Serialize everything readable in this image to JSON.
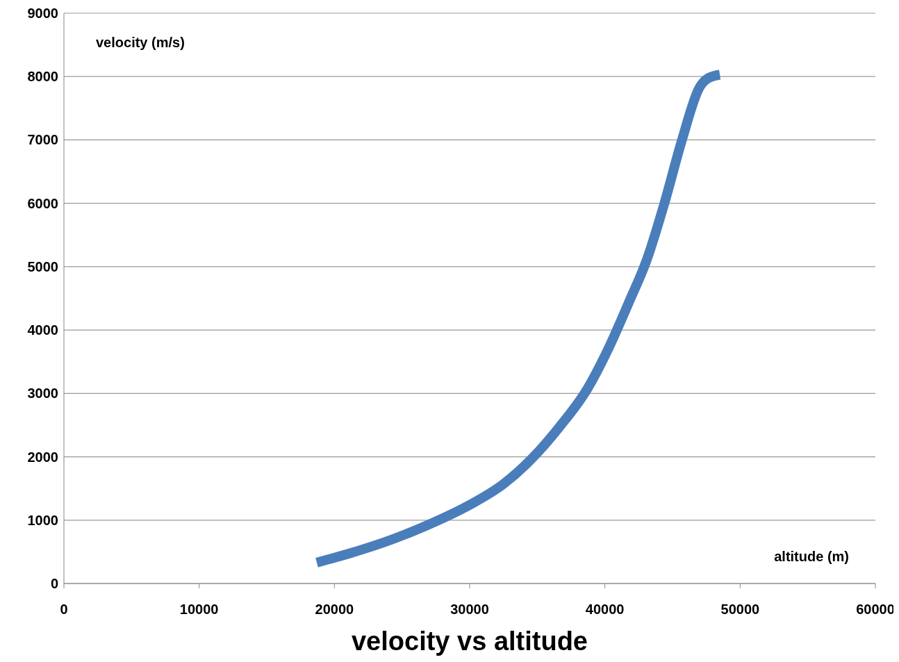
{
  "chart_data": {
    "type": "line",
    "title": "velocity vs altitude",
    "xlabel": "altitude (m)",
    "ylabel": "velocity (m/s)",
    "xlim": [
      0,
      60000
    ],
    "xticks": [
      0,
      10000,
      20000,
      30000,
      40000,
      50000,
      60000
    ],
    "ylim": [
      0,
      9000
    ],
    "yticks": [
      0,
      1000,
      2000,
      3000,
      4000,
      5000,
      6000,
      7000,
      8000,
      9000
    ],
    "grid": "y",
    "marker": "none",
    "line_style": "solid",
    "series": [
      {
        "color": "#4a7ebb",
        "x": [
          18700,
          20070,
          24200,
          27300,
          30000,
          32500,
          34550,
          36600,
          38700,
          40200,
          41800,
          43100,
          44400,
          45700,
          47000,
          47600,
          48500
        ],
        "values": [
          330,
          410,
          690,
          960,
          1240,
          1570,
          1960,
          2460,
          3070,
          3680,
          4450,
          5110,
          6000,
          7000,
          7830,
          7970,
          8030
        ]
      }
    ]
  }
}
